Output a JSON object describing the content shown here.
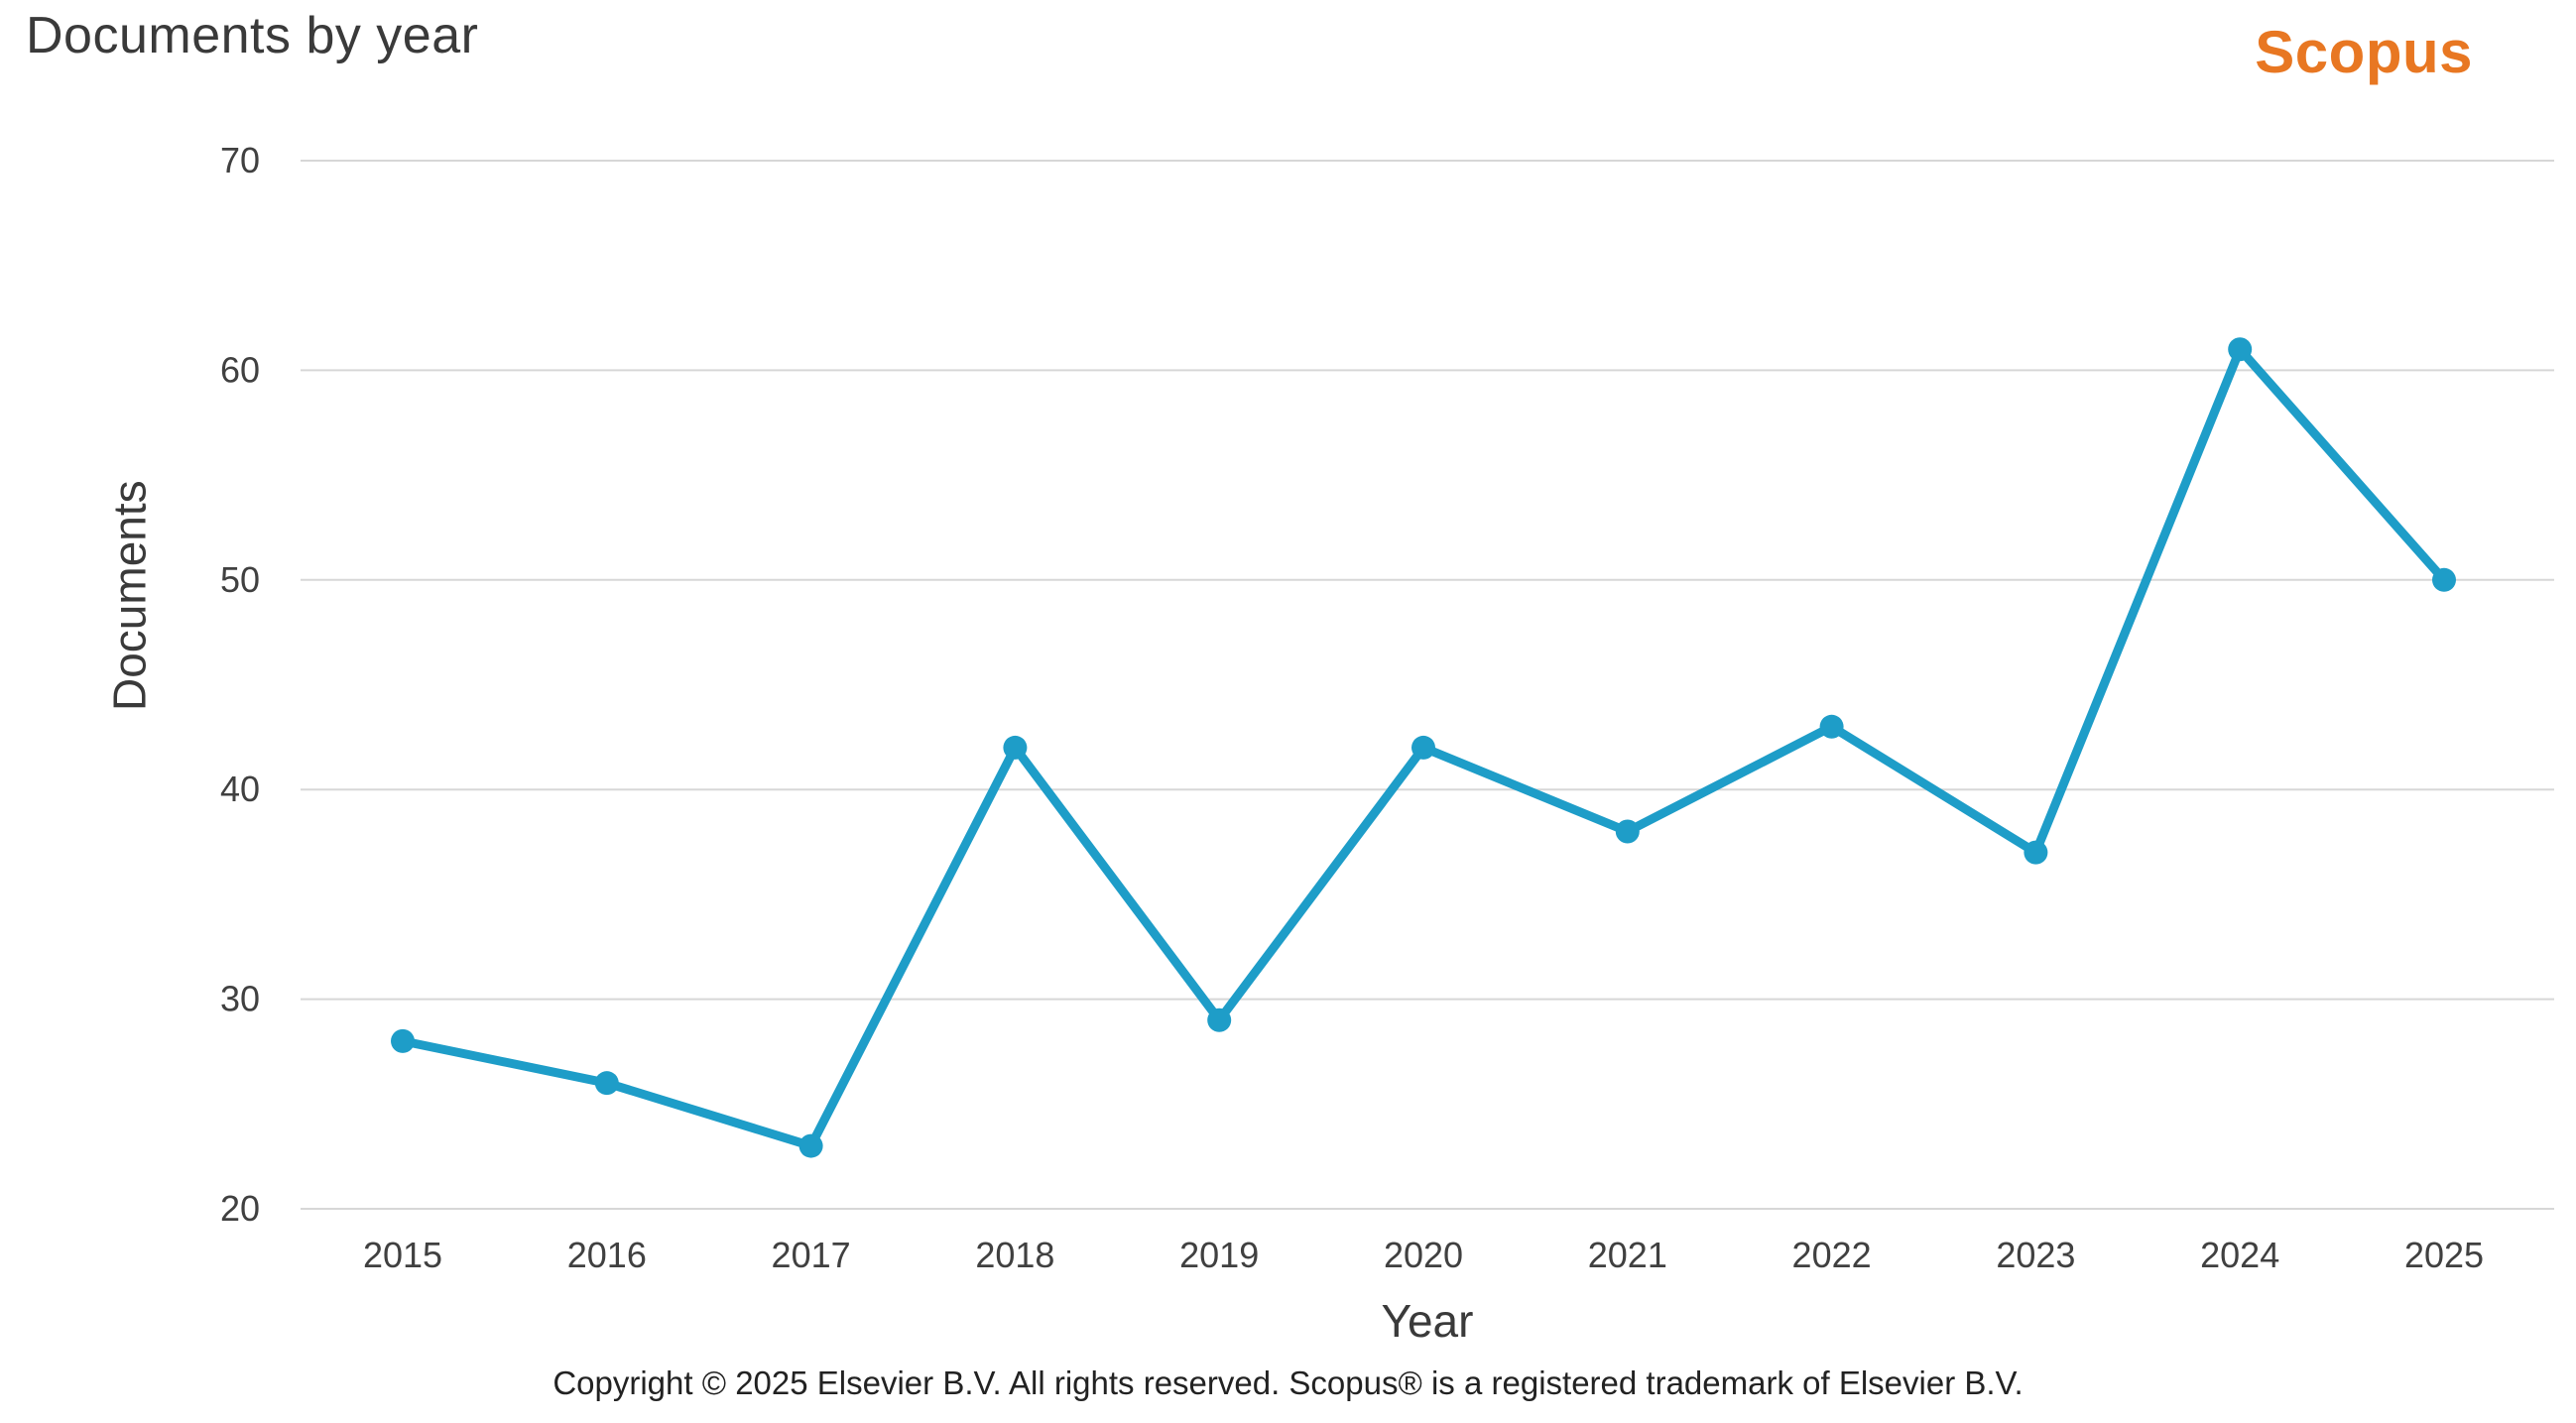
{
  "header": {
    "title": "Documents by year",
    "logo_text": "Scopus"
  },
  "footer": {
    "copyright": "Copyright © 2025 Elsevier B.V. All rights reserved. Scopus® is a registered trademark of Elsevier B.V."
  },
  "colors": {
    "line": "#1e9dc8",
    "marker": "#1e9dc8",
    "grid": "#d7d7d7",
    "title_text": "#3a3a3a",
    "axis_tick_text": "#404040",
    "logo_orange": "#e87722",
    "footer_text": "#222222",
    "background": "#ffffff"
  },
  "chart_data": {
    "type": "line",
    "title": "Documents by year",
    "xlabel": "Year",
    "ylabel": "Documents",
    "categories": [
      "2015",
      "2016",
      "2017",
      "2018",
      "2019",
      "2020",
      "2021",
      "2022",
      "2023",
      "2024",
      "2025"
    ],
    "series": [
      {
        "name": "Documents",
        "values": [
          28,
          26,
          23,
          42,
          29,
          42,
          38,
          43,
          37,
          61,
          50
        ]
      }
    ],
    "ylim": [
      20,
      70
    ],
    "yticks": [
      20,
      30,
      40,
      50,
      60,
      70
    ],
    "grid": "horizontal-only",
    "legend_position": "none",
    "marker": "circle"
  }
}
